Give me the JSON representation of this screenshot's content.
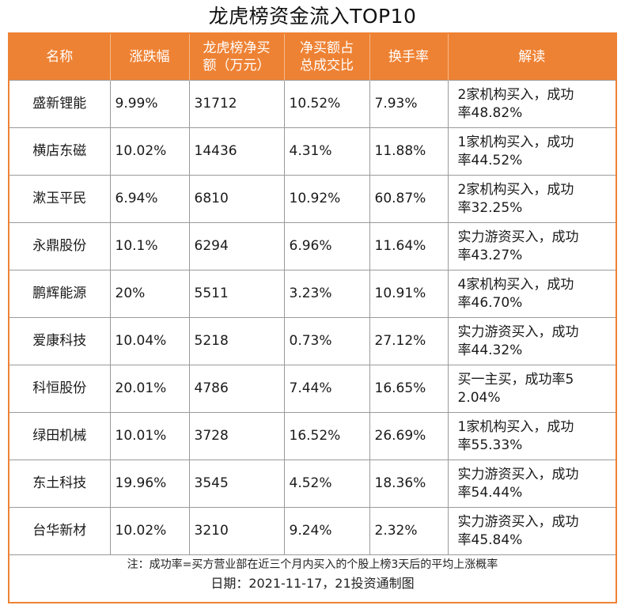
{
  "title": "龙虎榜资金流入TOP10",
  "colors": {
    "header_bg": "#ee8234",
    "header_text": "#ffffff",
    "border": "#9a9a9a"
  },
  "table": {
    "headers": [
      {
        "line1": "名称",
        "line2": ""
      },
      {
        "line1": "涨跌幅",
        "line2": ""
      },
      {
        "line1": "龙虎榜净买",
        "line2": "额（万元）"
      },
      {
        "line1": "净买额占",
        "line2": "总成交比"
      },
      {
        "line1": "换手率",
        "line2": ""
      },
      {
        "line1": "解读",
        "line2": ""
      }
    ],
    "rows": [
      {
        "name": "盛新锂能",
        "change": "9.99%",
        "net_buy": "31712",
        "ratio": "10.52%",
        "turnover": "7.93%",
        "note1": "2家机构买入，成功",
        "note2": "率48.82%"
      },
      {
        "name": "横店东磁",
        "change": "10.02%",
        "net_buy": "14436",
        "ratio": "4.31%",
        "turnover": "11.88%",
        "note1": "1家机构买入，成功",
        "note2": "率44.52%"
      },
      {
        "name": "漱玉平民",
        "change": "6.94%",
        "net_buy": "6810",
        "ratio": "10.92%",
        "turnover": "60.87%",
        "note1": "2家机构买入，成功",
        "note2": "率32.25%"
      },
      {
        "name": "永鼎股份",
        "change": "10.1%",
        "net_buy": "6294",
        "ratio": "6.96%",
        "turnover": "11.64%",
        "note1": "实力游资买入，成功",
        "note2": "率43.27%"
      },
      {
        "name": "鹏辉能源",
        "change": "20%",
        "net_buy": "5511",
        "ratio": "3.23%",
        "turnover": "10.91%",
        "note1": "4家机构买入，成功",
        "note2": "率46.70%"
      },
      {
        "name": "爱康科技",
        "change": "10.04%",
        "net_buy": "5218",
        "ratio": "0.73%",
        "turnover": "27.12%",
        "note1": "实力游资买入，成功",
        "note2": "率44.32%"
      },
      {
        "name": "科恒股份",
        "change": "20.01%",
        "net_buy": "4786",
        "ratio": "7.44%",
        "turnover": "16.65%",
        "note1": "买一主买，成功率5",
        "note2": "2.04%"
      },
      {
        "name": "绿田机械",
        "change": "10.01%",
        "net_buy": "3728",
        "ratio": "16.52%",
        "turnover": "26.69%",
        "note1": "1家机构买入，成功",
        "note2": "率55.33%"
      },
      {
        "name": "东土科技",
        "change": "19.96%",
        "net_buy": "3545",
        "ratio": "4.52%",
        "turnover": "18.36%",
        "note1": "实力游资买入，成功",
        "note2": "率54.44%"
      },
      {
        "name": "台华新材",
        "change": "10.02%",
        "net_buy": "3210",
        "ratio": "9.24%",
        "turnover": "2.32%",
        "note1": "实力游资买入，成功",
        "note2": "率45.84%"
      }
    ]
  },
  "footer": {
    "note": "注：成功率=买方营业部在近三个月内买入的个股上榜3天后的平均上涨概率",
    "date": "日期：2021-11-17，21投资通制图"
  }
}
